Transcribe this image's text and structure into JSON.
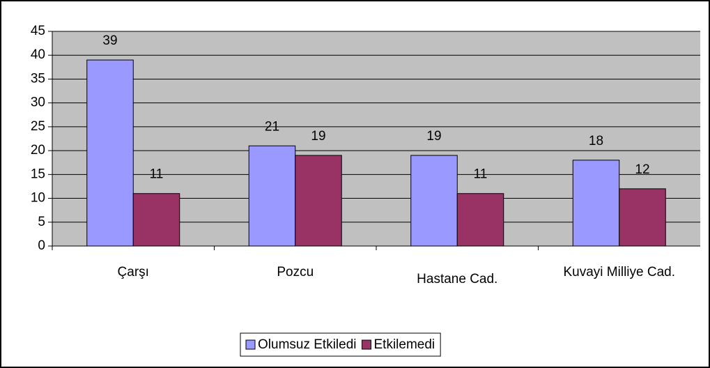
{
  "chart_data": {
    "type": "bar",
    "categories": [
      "Çarşı",
      "Pozcu",
      "Hastane Cad.",
      "Kuvayi Milliye Cad."
    ],
    "series": [
      {
        "name": "Olumsuz Etkiledi",
        "color": "#9999ff",
        "values": [
          39,
          21,
          19,
          18
        ]
      },
      {
        "name": "Etkilemedi",
        "color": "#993366",
        "values": [
          11,
          19,
          11,
          12
        ]
      }
    ],
    "ylim": [
      0,
      45
    ],
    "yticks": [
      0,
      5,
      10,
      15,
      20,
      25,
      30,
      35,
      40,
      45
    ],
    "grid": true,
    "plot_background": "#c0c0c0",
    "legend": "bottom"
  }
}
